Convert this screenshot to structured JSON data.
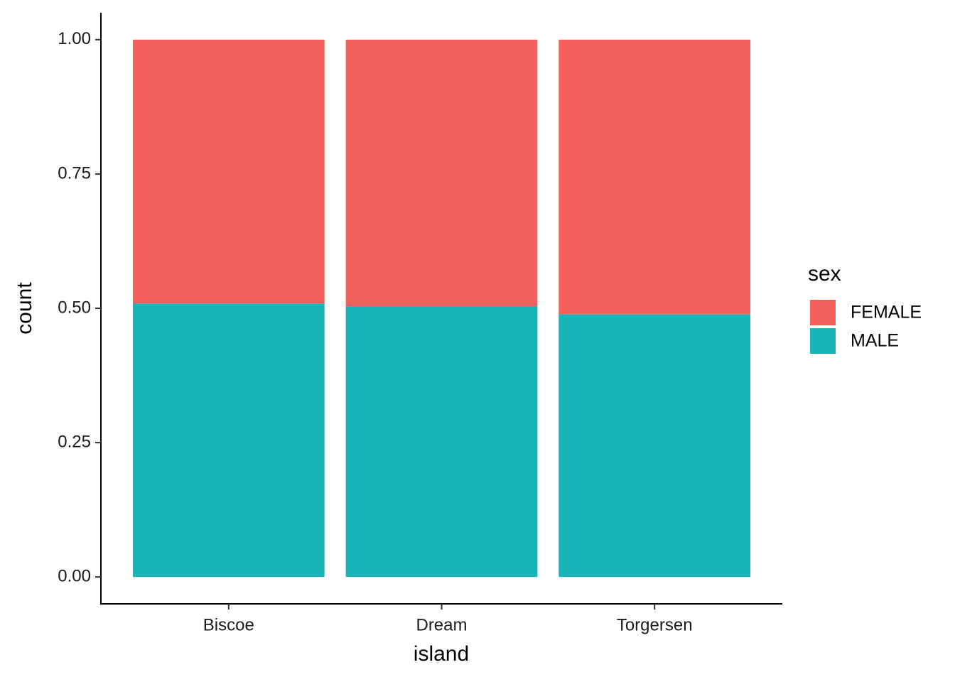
{
  "chart_data": {
    "type": "bar",
    "stacked": true,
    "x_label": "island",
    "y_label": "count",
    "categories": [
      "Biscoe",
      "Dream",
      "Torgersen"
    ],
    "series": [
      {
        "name": "FEMALE",
        "color": "#f3605b",
        "values": [
          0.491,
          0.496,
          0.511
        ]
      },
      {
        "name": "MALE",
        "color": "#19b4b8",
        "values": [
          0.509,
          0.504,
          0.489
        ]
      }
    ],
    "legend_title": "sex",
    "legend": "right",
    "ylim": [
      -0.05,
      1.05
    ],
    "yticks": [
      {
        "value": 0,
        "label": "0.00"
      },
      {
        "value": 0.25,
        "label": "0.25"
      },
      {
        "value": 0.5,
        "label": "0.50"
      },
      {
        "value": 0.75,
        "label": "0.75"
      },
      {
        "value": 1,
        "label": "1.00"
      }
    ],
    "grid": false
  }
}
